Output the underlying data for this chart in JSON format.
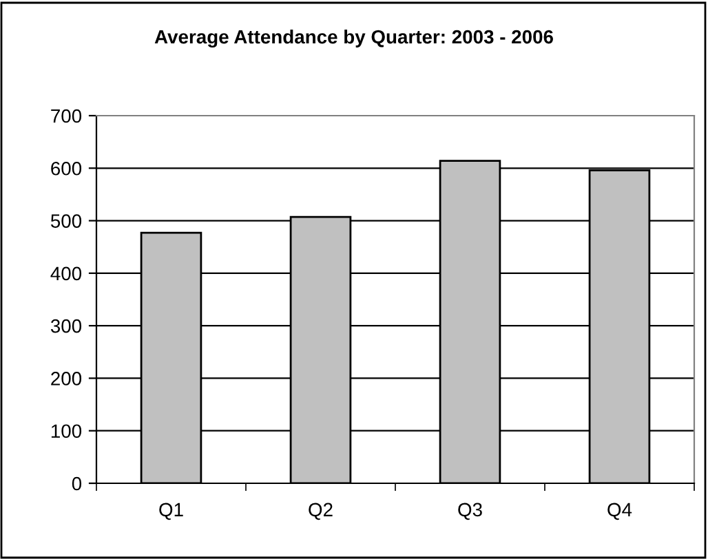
{
  "chart_data": {
    "type": "bar",
    "title": "Average Attendance by Quarter: 2003 - 2006",
    "categories": [
      "Q1",
      "Q2",
      "Q3",
      "Q4"
    ],
    "values": [
      477,
      507,
      614,
      596
    ],
    "color": "#c0c0c0",
    "ylim": [
      0,
      700
    ],
    "yticks": [
      0,
      100,
      200,
      300,
      400,
      500,
      600,
      700
    ],
    "grid": "y",
    "legend": false
  }
}
